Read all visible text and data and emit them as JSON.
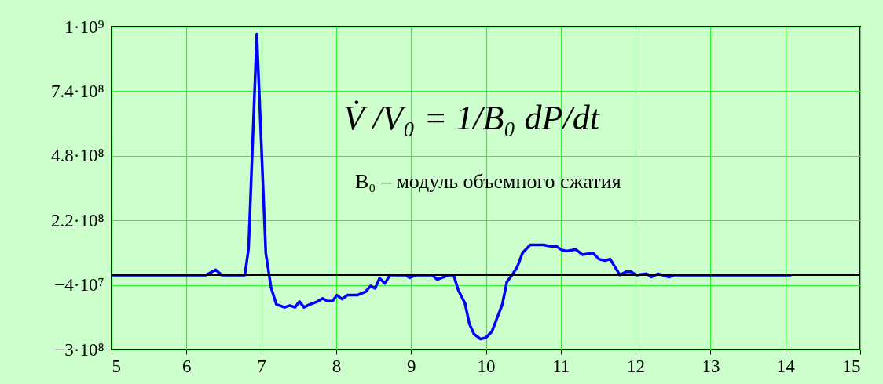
{
  "chart_data": {
    "type": "line",
    "x": [
      5,
      6.26,
      6.39,
      6.47,
      6.78,
      6.83,
      6.94,
      7.06,
      7.13,
      7.2,
      7.31,
      7.38,
      7.45,
      7.51,
      7.57,
      7.65,
      7.75,
      7.82,
      7.88,
      7.95,
      8.01,
      8.08,
      8.15,
      8.28,
      8.39,
      8.46,
      8.52,
      8.58,
      8.65,
      8.72,
      8.93,
      8.98,
      9.07,
      9.28,
      9.35,
      9.51,
      9.57,
      9.63,
      9.72,
      9.78,
      9.84,
      9.93,
      10,
      10.08,
      10.22,
      10.28,
      10.35,
      10.42,
      10.49,
      10.59,
      10.77,
      10.86,
      10.94,
      11.01,
      11.08,
      11.2,
      11.29,
      11.43,
      11.51,
      11.59,
      11.66,
      11.79,
      11.87,
      11.94,
      12.01,
      12.15,
      12.21,
      12.3,
      12.45,
      12.52,
      14.08
    ],
    "series": [
      {
        "color": "#0000ff",
        "values": [
          0,
          0,
          21000000.0,
          0,
          0,
          106000000.0,
          970000000.0,
          87000000.0,
          -50000000.0,
          -118000000.0,
          -130000000.0,
          -123000000.0,
          -130000000.0,
          -107000000.0,
          -130000000.0,
          -118000000.0,
          -107000000.0,
          -94000000.0,
          -105000000.0,
          -105000000.0,
          -81000000.0,
          -97000000.0,
          -81000000.0,
          -81000000.0,
          -68000000.0,
          -44000000.0,
          -54000000.0,
          -13000000.0,
          -34000000.0,
          0,
          0,
          -11000000.0,
          0,
          0,
          -18000000.0,
          0,
          0,
          -60000000.0,
          -113000000.0,
          -197000000.0,
          -237000000.0,
          -258000000.0,
          -252000000.0,
          -228000000.0,
          -118000000.0,
          -28000000.0,
          0,
          33000000.0,
          89000000.0,
          121000000.0,
          121000000.0,
          116000000.0,
          116000000.0,
          101000000.0,
          96000000.0,
          103000000.0,
          82000000.0,
          89000000.0,
          64000000.0,
          58000000.0,
          64000000.0,
          0,
          13000000.0,
          13000000.0,
          0,
          5000000.0,
          -8000000.0,
          5000000.0,
          -8000000.0,
          0,
          0
        ]
      }
    ],
    "xlim": [
      5,
      15
    ],
    "xticks": [
      5,
      6,
      7,
      8,
      9,
      10,
      11,
      12,
      13,
      14,
      15
    ],
    "ylim": [
      -300000000.0,
      1000000000.0
    ],
    "yticks": [
      {
        "value": 1000000000.0,
        "label": "1·10⁹"
      },
      {
        "value": 740000000.0,
        "label": "7.4·10⁸"
      },
      {
        "value": 480000000.0,
        "label": "4.8·10⁸"
      },
      {
        "value": 220000000.0,
        "label": "2.2·10⁸"
      },
      {
        "value": -40000000.0,
        "label": "−4·10⁷"
      },
      {
        "value": -300000000.0,
        "label": "−3·10⁸"
      }
    ],
    "grid": true,
    "marker": "none",
    "line_style": "solid",
    "ref_lines": [
      {
        "axis": "y",
        "value": 0,
        "color": "#000000"
      }
    ],
    "annotations": [
      "V̇ /V₀ = 1/B₀ dP/dt",
      "B₀ – модуль объемного сжатия"
    ]
  }
}
